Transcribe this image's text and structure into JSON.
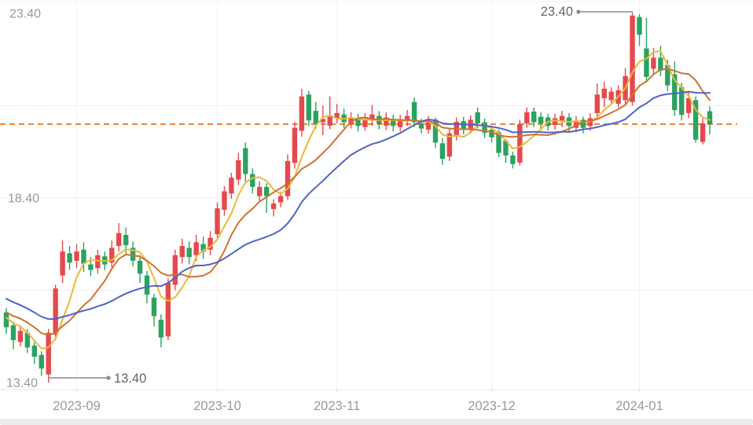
{
  "chart_data": {
    "type": "candlestick",
    "description": "Daily K-line chart, red = up / green = down, with MA overlays, dashed latest-close reference line and min/max price annotations",
    "ylim": [
      13.4,
      23.4
    ],
    "y_axis_labels": [
      {
        "text": "23.40",
        "price": 23.4
      },
      {
        "text": "18.40",
        "price": 18.4
      },
      {
        "text": "13.40",
        "price": 13.4
      }
    ],
    "y_gridline_prices": [
      20.9,
      18.4,
      15.9
    ],
    "x_ticks": [
      {
        "label": "2023-09",
        "candle_index": 10
      },
      {
        "label": "2023-10",
        "candle_index": 30
      },
      {
        "label": "2023-11",
        "candle_index": 47
      },
      {
        "label": "2023-12",
        "candle_index": 69
      },
      {
        "label": "2024-01",
        "candle_index": 90
      }
    ],
    "reference_line": {
      "price": 20.4,
      "style": "dashed"
    },
    "annotations": {
      "max": {
        "text": "23.40",
        "price": 23.4,
        "candle_index": 89
      },
      "min": {
        "text": "13.40",
        "price": 13.4,
        "candle_index": 6
      }
    },
    "series": {
      "candles": [
        [
          15.3,
          14.9,
          14.72,
          15.42
        ],
        [
          14.95,
          14.55,
          14.3,
          15.05
        ],
        [
          14.5,
          14.8,
          14.38,
          14.95
        ],
        [
          14.75,
          14.35,
          14.2,
          14.85
        ],
        [
          14.4,
          14.1,
          13.9,
          14.5
        ],
        [
          14.15,
          13.78,
          13.58,
          14.25
        ],
        [
          13.62,
          14.75,
          13.4,
          14.85
        ],
        [
          14.7,
          15.95,
          14.55,
          16.05
        ],
        [
          16.3,
          16.95,
          16.1,
          17.25
        ],
        [
          16.9,
          16.65,
          16.45,
          17.1
        ],
        [
          16.7,
          16.95,
          16.5,
          17.15
        ],
        [
          17.0,
          16.62,
          16.4,
          17.2
        ],
        [
          16.6,
          16.45,
          16.28,
          16.8
        ],
        [
          16.5,
          16.85,
          16.35,
          17.0
        ],
        [
          16.82,
          16.6,
          16.45,
          16.95
        ],
        [
          16.65,
          17.05,
          16.52,
          17.25
        ],
        [
          17.1,
          17.45,
          16.95,
          17.72
        ],
        [
          17.4,
          17.12,
          16.9,
          17.6
        ],
        [
          17.05,
          16.7,
          16.55,
          17.22
        ],
        [
          16.7,
          16.35,
          16.1,
          16.85
        ],
        [
          16.3,
          15.78,
          15.55,
          16.42
        ],
        [
          15.7,
          15.2,
          14.92,
          15.8
        ],
        [
          15.1,
          14.62,
          14.35,
          15.25
        ],
        [
          14.65,
          16.1,
          14.55,
          16.22
        ],
        [
          16.05,
          16.85,
          15.9,
          17.0
        ],
        [
          16.8,
          17.1,
          16.62,
          17.3
        ],
        [
          17.05,
          16.8,
          16.6,
          17.22
        ],
        [
          16.85,
          17.2,
          16.7,
          17.4
        ],
        [
          17.15,
          16.95,
          16.75,
          17.35
        ],
        [
          17.0,
          17.32,
          16.85,
          17.5
        ],
        [
          17.42,
          18.12,
          17.32,
          18.28
        ],
        [
          18.08,
          18.58,
          17.92,
          18.72
        ],
        [
          18.52,
          18.95,
          18.38,
          19.08
        ],
        [
          18.9,
          19.42,
          18.75,
          19.62
        ],
        [
          19.75,
          19.05,
          18.85,
          19.9
        ],
        [
          19.05,
          18.7,
          18.52,
          19.2
        ],
        [
          18.45,
          18.7,
          18.3,
          18.85
        ],
        [
          18.7,
          18.45,
          18.0,
          18.8
        ],
        [
          18.1,
          18.25,
          17.9,
          18.36
        ],
        [
          18.28,
          18.45,
          18.15,
          18.56
        ],
        [
          18.45,
          19.4,
          18.35,
          19.58
        ],
        [
          19.35,
          20.3,
          19.2,
          20.46
        ],
        [
          20.22,
          21.15,
          20.06,
          21.36
        ],
        [
          21.2,
          20.5,
          20.35,
          21.3
        ],
        [
          20.76,
          20.42,
          20.28,
          21.0
        ],
        [
          20.45,
          20.54,
          20.1,
          20.9
        ],
        [
          20.36,
          20.6,
          20.26,
          21.15
        ],
        [
          20.55,
          20.7,
          20.42,
          20.95
        ],
        [
          20.66,
          20.45,
          20.3,
          20.82
        ],
        [
          20.4,
          20.58,
          20.28,
          20.72
        ],
        [
          20.55,
          20.35,
          20.2,
          20.68
        ],
        [
          20.32,
          20.55,
          20.22,
          20.7
        ],
        [
          20.5,
          20.66,
          20.36,
          20.92
        ],
        [
          20.62,
          20.4,
          20.26,
          20.75
        ],
        [
          20.36,
          20.58,
          20.24,
          20.72
        ],
        [
          20.54,
          20.35,
          20.2,
          20.66
        ],
        [
          20.32,
          20.52,
          20.2,
          20.65
        ],
        [
          20.48,
          20.62,
          20.35,
          20.78
        ],
        [
          21.0,
          20.45,
          20.32,
          21.12
        ],
        [
          20.42,
          20.28,
          20.15,
          20.55
        ],
        [
          20.25,
          20.5,
          20.14,
          20.62
        ],
        [
          20.52,
          19.9,
          19.75,
          20.58
        ],
        [
          19.88,
          19.46,
          19.3,
          20.02
        ],
        [
          19.52,
          20.15,
          19.4,
          20.3
        ],
        [
          20.1,
          20.46,
          19.96,
          20.58
        ],
        [
          20.48,
          20.28,
          20.12,
          20.6
        ],
        [
          20.25,
          20.52,
          20.14,
          20.64
        ],
        [
          20.72,
          20.42,
          20.28,
          20.85
        ],
        [
          20.45,
          20.16,
          20.02,
          20.55
        ],
        [
          20.25,
          20.04,
          19.9,
          20.35
        ],
        [
          20.18,
          19.62,
          19.5,
          20.25
        ],
        [
          19.95,
          19.55,
          19.35,
          20.0
        ],
        [
          19.55,
          19.32,
          19.2,
          19.65
        ],
        [
          19.36,
          20.4,
          19.28,
          20.52
        ],
        [
          20.42,
          20.72,
          20.3,
          20.85
        ],
        [
          20.74,
          20.45,
          20.32,
          20.85
        ],
        [
          20.6,
          20.42,
          20.28,
          20.72
        ],
        [
          20.58,
          20.35,
          20.22,
          20.68
        ],
        [
          20.38,
          20.56,
          20.25,
          20.68
        ],
        [
          20.46,
          20.62,
          20.32,
          20.76
        ],
        [
          20.58,
          20.35,
          20.2,
          20.7
        ],
        [
          20.3,
          20.5,
          20.18,
          20.62
        ],
        [
          20.52,
          20.3,
          20.15,
          20.6
        ],
        [
          20.35,
          20.56,
          20.22,
          20.7
        ],
        [
          20.7,
          21.2,
          20.6,
          21.5
        ],
        [
          21.1,
          21.36,
          20.86,
          21.55
        ],
        [
          21.05,
          21.28,
          20.92,
          21.4
        ],
        [
          20.95,
          21.32,
          20.85,
          21.45
        ],
        [
          21.05,
          21.7,
          20.95,
          21.92
        ],
        [
          21.0,
          23.34,
          20.9,
          23.4
        ],
        [
          23.3,
          22.82,
          22.52,
          23.38
        ],
        [
          22.45,
          21.68,
          21.52,
          23.28
        ],
        [
          21.9,
          22.2,
          21.76,
          22.46
        ],
        [
          22.2,
          21.85,
          21.7,
          22.52
        ],
        [
          22.0,
          21.45,
          21.3,
          22.15
        ],
        [
          21.75,
          20.78,
          20.62,
          22.1
        ],
        [
          21.4,
          20.65,
          20.5,
          21.52
        ],
        [
          20.7,
          21.1,
          20.56,
          21.26
        ],
        [
          21.05,
          19.98,
          19.9,
          21.15
        ],
        [
          19.92,
          20.42,
          19.85,
          20.56
        ],
        [
          20.75,
          20.4,
          20.12,
          20.88
        ]
      ],
      "candle_format": [
        "open",
        "close",
        "low",
        "high"
      ],
      "pre_window_closes": [
        16.5,
        16.42,
        16.35,
        16.27,
        16.2,
        16.1,
        16.0,
        15.9,
        15.8,
        15.7,
        15.62,
        15.55,
        15.5,
        15.45,
        15.4,
        15.35,
        15.3,
        15.25,
        15.2,
        15.15
      ],
      "moving_averages": [
        {
          "name": "MA5",
          "period": 5
        },
        {
          "name": "MA10",
          "period": 10
        },
        {
          "name": "MA20",
          "period": 20
        }
      ]
    }
  },
  "colors": {
    "up_candle": "#e5494d",
    "down_candle": "#2aa360",
    "ma5": "#ecb83a",
    "ma10": "#d0712f",
    "ma20": "#4f63c8",
    "reference_line": "#ee8433",
    "gridline": "#f2f2f2",
    "axis_line": "#e7e7e7",
    "axis_text": "#999999",
    "annotation_line": "#8c8c8c",
    "annotation_text": "#666666",
    "slider_track": "#ececec"
  }
}
